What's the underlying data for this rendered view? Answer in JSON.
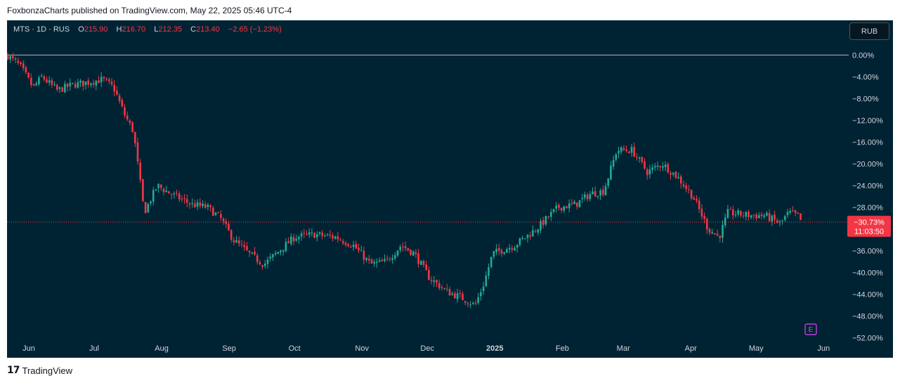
{
  "header": {
    "attribution": "FoxbonzaCharts published on TradingView.com, May 22, 2025 05:46 UTC-4"
  },
  "legend": {
    "symbol": "MTS · 1D · RUS",
    "open_label": "O",
    "open": "215.90",
    "high_label": "H",
    "high": "216.70",
    "low_label": "L",
    "low": "212.35",
    "close_label": "C",
    "close": "213.40",
    "change": "−2.65 (−1.23%)"
  },
  "currency_button": "RUB",
  "price_tag": {
    "value": "−30.73%",
    "countdown": "11:03:50"
  },
  "event_marker": "E",
  "footer": {
    "brand": "TradingView",
    "logo": "17"
  },
  "colors": {
    "background": "#002333",
    "up": "#22ab94",
    "down": "#f23645",
    "axis_text": "#d1d4dc",
    "zero_line": "#b2b5be"
  },
  "chart_data": {
    "type": "candlestick",
    "title": "",
    "y_axis": {
      "unit": "percent",
      "range": [
        -52,
        0
      ],
      "ticks": [
        "0.00%",
        "−4.00%",
        "−8.00%",
        "−12.00%",
        "−16.00%",
        "−20.00%",
        "−24.00%",
        "−28.00%",
        "−32.00%",
        "−36.00%",
        "−40.00%",
        "−44.00%",
        "−48.00%",
        "−52.00%"
      ],
      "tick_values": [
        0,
        -4,
        -8,
        -12,
        -16,
        -20,
        -24,
        -28,
        -32,
        -36,
        -40,
        -44,
        -48,
        -52
      ]
    },
    "x_axis": {
      "labels": [
        "Jun",
        "Jul",
        "Aug",
        "Sep",
        "Oct",
        "Nov",
        "Dec",
        "2025",
        "Feb",
        "Mar",
        "Apr",
        "May",
        "Jun"
      ],
      "label_dates": [
        "2024-06-01",
        "2024-07-01",
        "2024-08-01",
        "2024-09-01",
        "2024-10-01",
        "2024-11-01",
        "2024-12-01",
        "2025-01-01",
        "2025-02-01",
        "2025-03-01",
        "2025-04-01",
        "2025-05-01",
        "2025-06-01"
      ],
      "range": [
        "2024-05-22",
        "2025-06-08"
      ]
    },
    "zero_line": 0,
    "last_value": -30.73,
    "grid": false,
    "approx_close_series": [
      {
        "date": "2024-05-22",
        "value": 0
      },
      {
        "date": "2024-05-28",
        "value": -2
      },
      {
        "date": "2024-06-03",
        "value": -6
      },
      {
        "date": "2024-06-07",
        "value": -4
      },
      {
        "date": "2024-06-14",
        "value": -6.5
      },
      {
        "date": "2024-06-21",
        "value": -5.5
      },
      {
        "date": "2024-06-28",
        "value": -5
      },
      {
        "date": "2024-07-05",
        "value": -4.5
      },
      {
        "date": "2024-07-10",
        "value": -6
      },
      {
        "date": "2024-07-15",
        "value": -11
      },
      {
        "date": "2024-07-19",
        "value": -14
      },
      {
        "date": "2024-07-24",
        "value": -29
      },
      {
        "date": "2024-07-30",
        "value": -24
      },
      {
        "date": "2024-08-05",
        "value": -25.5
      },
      {
        "date": "2024-08-15",
        "value": -27.5
      },
      {
        "date": "2024-08-22",
        "value": -28
      },
      {
        "date": "2024-08-28",
        "value": -30
      },
      {
        "date": "2024-09-03",
        "value": -34
      },
      {
        "date": "2024-09-10",
        "value": -36.5
      },
      {
        "date": "2024-09-17",
        "value": -38.5
      },
      {
        "date": "2024-09-24",
        "value": -36
      },
      {
        "date": "2024-10-01",
        "value": -33.5
      },
      {
        "date": "2024-10-10",
        "value": -33
      },
      {
        "date": "2024-10-20",
        "value": -33.5
      },
      {
        "date": "2024-10-28",
        "value": -35
      },
      {
        "date": "2024-11-05",
        "value": -38.5
      },
      {
        "date": "2024-11-12",
        "value": -38
      },
      {
        "date": "2024-11-19",
        "value": -35
      },
      {
        "date": "2024-11-25",
        "value": -36.5
      },
      {
        "date": "2024-12-02",
        "value": -41
      },
      {
        "date": "2024-12-10",
        "value": -43.5
      },
      {
        "date": "2024-12-16",
        "value": -44.5
      },
      {
        "date": "2024-12-23",
        "value": -46
      },
      {
        "date": "2024-12-27",
        "value": -42
      },
      {
        "date": "2024-12-31",
        "value": -36.5
      },
      {
        "date": "2025-01-10",
        "value": -35
      },
      {
        "date": "2025-01-20",
        "value": -32
      },
      {
        "date": "2025-01-30",
        "value": -28
      },
      {
        "date": "2025-02-07",
        "value": -27.5
      },
      {
        "date": "2025-02-14",
        "value": -25.5
      },
      {
        "date": "2025-02-20",
        "value": -25
      },
      {
        "date": "2025-02-26",
        "value": -17.5
      },
      {
        "date": "2025-03-05",
        "value": -17.5
      },
      {
        "date": "2025-03-12",
        "value": -21.5
      },
      {
        "date": "2025-03-19",
        "value": -20
      },
      {
        "date": "2025-03-26",
        "value": -22.5
      },
      {
        "date": "2025-04-02",
        "value": -26
      },
      {
        "date": "2025-04-09",
        "value": -32
      },
      {
        "date": "2025-04-14",
        "value": -33.5
      },
      {
        "date": "2025-04-18",
        "value": -29
      },
      {
        "date": "2025-04-28",
        "value": -29.5
      },
      {
        "date": "2025-05-05",
        "value": -29.5
      },
      {
        "date": "2025-05-12",
        "value": -31
      },
      {
        "date": "2025-05-16",
        "value": -29
      },
      {
        "date": "2025-05-20",
        "value": -29.5
      },
      {
        "date": "2025-05-22",
        "value": -30.73
      }
    ]
  }
}
